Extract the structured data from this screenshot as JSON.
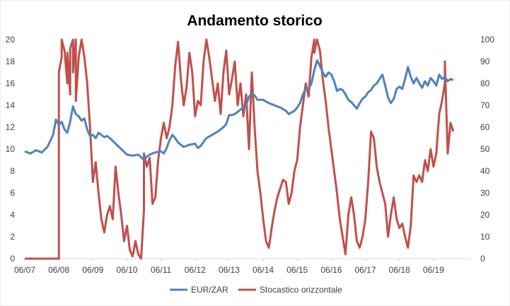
{
  "chart_data": {
    "type": "line",
    "title": "Andamento storico",
    "x_ticks": [
      "06/07",
      "06/08",
      "06/09",
      "06/10",
      "06/11",
      "06/12",
      "06/13",
      "06/14",
      "06/15",
      "06/16",
      "06/17",
      "06/18",
      "06/19"
    ],
    "xlim": [
      "06/07",
      "07/20"
    ],
    "y_left": {
      "ylim": [
        0,
        20
      ],
      "ticks": [
        "0",
        "2",
        "4",
        "6",
        "8",
        "10",
        "12",
        "14",
        "16",
        "18",
        "20"
      ]
    },
    "y_right": {
      "ylim": [
        0,
        100
      ],
      "ticks": [
        "0",
        "10",
        "20",
        "30",
        "40",
        "50",
        "60",
        "70",
        "80",
        "90",
        "100"
      ]
    },
    "grid": false,
    "legend_position": "bottom",
    "colors": {
      "eur_zar": "#4f81bd",
      "stocastico": "#c0504d"
    },
    "series": [
      {
        "name": "EUR/ZAR",
        "axis": "left",
        "points": [
          [
            "06/07",
            9.8
          ],
          [
            "08/07",
            9.6
          ],
          [
            "10/07",
            9.9
          ],
          [
            "12/07",
            9.7
          ],
          [
            "02/08",
            10.2
          ],
          [
            "04/08",
            11.3
          ],
          [
            "05/08",
            12.7
          ],
          [
            "06/08",
            12.2
          ],
          [
            "07/08",
            12.5
          ],
          [
            "08/08",
            11.8
          ],
          [
            "09/08",
            11.5
          ],
          [
            "10/08",
            12.5
          ],
          [
            "11/08",
            13.9
          ],
          [
            "12/08",
            13.2
          ],
          [
            "01/09",
            13.0
          ],
          [
            "02/09",
            12.6
          ],
          [
            "03/09",
            12.8
          ],
          [
            "04/09",
            11.8
          ],
          [
            "05/09",
            11.2
          ],
          [
            "06/09",
            11.3
          ],
          [
            "07/09",
            11.0
          ],
          [
            "08/09",
            11.5
          ],
          [
            "09/09",
            11.3
          ],
          [
            "10/09",
            11.1
          ],
          [
            "11/09",
            11.2
          ],
          [
            "12/09",
            11.0
          ],
          [
            "02/10",
            10.5
          ],
          [
            "04/10",
            10.0
          ],
          [
            "06/10",
            9.5
          ],
          [
            "08/10",
            9.4
          ],
          [
            "10/10",
            9.5
          ],
          [
            "12/10",
            9.0
          ],
          [
            "01/11",
            9.3
          ],
          [
            "02/11",
            9.5
          ],
          [
            "04/11",
            9.7
          ],
          [
            "06/11",
            9.8
          ],
          [
            "07/11",
            9.6
          ],
          [
            "08/11",
            10.1
          ],
          [
            "09/11",
            10.8
          ],
          [
            "10/11",
            11.3
          ],
          [
            "11/11",
            11.0
          ],
          [
            "12/11",
            10.6
          ],
          [
            "02/12",
            10.2
          ],
          [
            "04/12",
            10.4
          ],
          [
            "06/12",
            10.5
          ],
          [
            "07/12",
            10.1
          ],
          [
            "08/12",
            10.3
          ],
          [
            "10/12",
            11.0
          ],
          [
            "12/12",
            11.3
          ],
          [
            "02/13",
            11.6
          ],
          [
            "04/13",
            12.0
          ],
          [
            "05/13",
            12.3
          ],
          [
            "06/13",
            13.1
          ],
          [
            "07/13",
            13.1
          ],
          [
            "08/13",
            13.2
          ],
          [
            "09/13",
            13.4
          ],
          [
            "10/13",
            13.6
          ],
          [
            "12/13",
            14.0
          ],
          [
            "01/14",
            14.8
          ],
          [
            "02/14",
            15.0
          ],
          [
            "03/14",
            14.9
          ],
          [
            "04/14",
            14.5
          ],
          [
            "06/14",
            14.5
          ],
          [
            "08/14",
            14.2
          ],
          [
            "10/14",
            14.0
          ],
          [
            "12/14",
            13.8
          ],
          [
            "02/15",
            13.5
          ],
          [
            "03/15",
            13.2
          ],
          [
            "05/15",
            13.5
          ],
          [
            "06/15",
            13.8
          ],
          [
            "07/15",
            14.2
          ],
          [
            "08/15",
            15.0
          ],
          [
            "09/15",
            15.5
          ],
          [
            "10/15",
            15.5
          ],
          [
            "11/15",
            16.0
          ],
          [
            "12/15",
            17.2
          ],
          [
            "01/16",
            18.1
          ],
          [
            "02/16",
            17.6
          ],
          [
            "03/16",
            17.0
          ],
          [
            "04/16",
            16.6
          ],
          [
            "05/16",
            17.0
          ],
          [
            "06/16",
            16.8
          ],
          [
            "07/16",
            16.2
          ],
          [
            "08/16",
            15.3
          ],
          [
            "09/16",
            15.5
          ],
          [
            "10/16",
            15.4
          ],
          [
            "11/16",
            15.0
          ],
          [
            "12/16",
            14.5
          ],
          [
            "01/17",
            14.3
          ],
          [
            "02/17",
            14.0
          ],
          [
            "03/17",
            13.7
          ],
          [
            "04/17",
            14.2
          ],
          [
            "05/17",
            14.6
          ],
          [
            "06/17",
            14.8
          ],
          [
            "07/17",
            15.2
          ],
          [
            "08/17",
            15.4
          ],
          [
            "09/17",
            15.8
          ],
          [
            "10/17",
            16.0
          ],
          [
            "11/17",
            16.4
          ],
          [
            "12/17",
            16.8
          ],
          [
            "01/18",
            15.8
          ],
          [
            "02/18",
            14.7
          ],
          [
            "03/18",
            14.2
          ],
          [
            "04/18",
            14.6
          ],
          [
            "05/18",
            15.5
          ],
          [
            "06/18",
            15.7
          ],
          [
            "07/18",
            15.5
          ],
          [
            "08/18",
            16.4
          ],
          [
            "09/18",
            17.5
          ],
          [
            "10/18",
            16.6
          ],
          [
            "11/18",
            16.0
          ],
          [
            "12/18",
            16.5
          ],
          [
            "01/19",
            16.0
          ],
          [
            "02/19",
            15.6
          ],
          [
            "03/19",
            16.2
          ],
          [
            "04/19",
            15.8
          ],
          [
            "05/19",
            16.5
          ],
          [
            "06/19",
            16.2
          ],
          [
            "07/19",
            15.8
          ],
          [
            "08/19",
            16.8
          ],
          [
            "09/19",
            16.4
          ],
          [
            "10/19",
            16.6
          ],
          [
            "11/19",
            16.2
          ],
          [
            "12/19",
            16.4
          ],
          [
            "01/20",
            16.3
          ]
        ]
      },
      {
        "name": "Stocastico orizzontale",
        "axis": "right",
        "points": [
          [
            "06/07",
            0
          ],
          [
            "05/08",
            0
          ],
          [
            "06/08",
            0
          ],
          [
            "06/08",
            85
          ],
          [
            "07/08",
            92
          ],
          [
            "07/08",
            100
          ],
          [
            "08/08",
            95
          ],
          [
            "09/08",
            80
          ],
          [
            "09/08",
            94
          ],
          [
            "10/08",
            75
          ],
          [
            "10/08",
            96
          ],
          [
            "11/08",
            100
          ],
          [
            "11/08",
            85
          ],
          [
            "12/08",
            100
          ],
          [
            "12/08",
            72
          ],
          [
            "01/09",
            92
          ],
          [
            "02/09",
            100
          ],
          [
            "03/09",
            92
          ],
          [
            "04/09",
            80
          ],
          [
            "05/09",
            60
          ],
          [
            "06/09",
            35
          ],
          [
            "07/09",
            44
          ],
          [
            "08/09",
            30
          ],
          [
            "09/09",
            18
          ],
          [
            "10/09",
            12
          ],
          [
            "11/09",
            20
          ],
          [
            "12/09",
            24
          ],
          [
            "01/10",
            18
          ],
          [
            "02/10",
            42
          ],
          [
            "03/10",
            30
          ],
          [
            "04/10",
            20
          ],
          [
            "05/10",
            8
          ],
          [
            "06/10",
            15
          ],
          [
            "07/10",
            4
          ],
          [
            "08/10",
            1
          ],
          [
            "09/10",
            8
          ],
          [
            "10/10",
            2
          ],
          [
            "11/10",
            0
          ],
          [
            "12/10",
            22
          ],
          [
            "12/10",
            48
          ],
          [
            "01/11",
            42
          ],
          [
            "02/11",
            46
          ],
          [
            "03/11",
            25
          ],
          [
            "04/11",
            28
          ],
          [
            "05/11",
            45
          ],
          [
            "06/11",
            55
          ],
          [
            "07/11",
            62
          ],
          [
            "08/11",
            55
          ],
          [
            "09/11",
            60
          ],
          [
            "10/11",
            70
          ],
          [
            "11/11",
            88
          ],
          [
            "12/11",
            99
          ],
          [
            "01/12",
            82
          ],
          [
            "02/12",
            70
          ],
          [
            "03/12",
            78
          ],
          [
            "04/12",
            94
          ],
          [
            "05/12",
            85
          ],
          [
            "06/12",
            65
          ],
          [
            "07/12",
            72
          ],
          [
            "08/12",
            70
          ],
          [
            "09/12",
            90
          ],
          [
            "10/12",
            100
          ],
          [
            "11/12",
            92
          ],
          [
            "12/12",
            82
          ],
          [
            "01/13",
            72
          ],
          [
            "02/13",
            80
          ],
          [
            "03/13",
            66
          ],
          [
            "04/13",
            85
          ],
          [
            "05/13",
            95
          ],
          [
            "06/13",
            75
          ],
          [
            "07/13",
            82
          ],
          [
            "08/13",
            90
          ],
          [
            "09/13",
            70
          ],
          [
            "10/13",
            80
          ],
          [
            "11/13",
            65
          ],
          [
            "12/13",
            75
          ],
          [
            "01/14",
            50
          ],
          [
            "02/14",
            85
          ],
          [
            "03/14",
            60
          ],
          [
            "04/14",
            40
          ],
          [
            "05/14",
            30
          ],
          [
            "06/14",
            18
          ],
          [
            "07/14",
            8
          ],
          [
            "08/14",
            5
          ],
          [
            "09/14",
            14
          ],
          [
            "10/14",
            22
          ],
          [
            "11/14",
            28
          ],
          [
            "12/14",
            32
          ],
          [
            "01/15",
            36
          ],
          [
            "02/15",
            35
          ],
          [
            "03/15",
            25
          ],
          [
            "04/15",
            30
          ],
          [
            "05/15",
            40
          ],
          [
            "06/15",
            45
          ],
          [
            "07/15",
            60
          ],
          [
            "08/15",
            70
          ],
          [
            "09/15",
            80
          ],
          [
            "10/15",
            74
          ],
          [
            "11/15",
            92
          ],
          [
            "12/15",
            100
          ],
          [
            "12/15",
            94
          ],
          [
            "01/16",
            100
          ],
          [
            "02/16",
            95
          ],
          [
            "03/16",
            82
          ],
          [
            "04/16",
            72
          ],
          [
            "05/16",
            60
          ],
          [
            "06/16",
            50
          ],
          [
            "07/16",
            40
          ],
          [
            "08/16",
            30
          ],
          [
            "09/16",
            18
          ],
          [
            "10/16",
            10
          ],
          [
            "11/16",
            2
          ],
          [
            "12/16",
            20
          ],
          [
            "01/17",
            28
          ],
          [
            "02/17",
            20
          ],
          [
            "03/17",
            8
          ],
          [
            "04/17",
            5
          ],
          [
            "05/17",
            10
          ],
          [
            "06/17",
            18
          ],
          [
            "07/17",
            35
          ],
          [
            "08/17",
            58
          ],
          [
            "09/17",
            55
          ],
          [
            "10/17",
            42
          ],
          [
            "11/17",
            35
          ],
          [
            "12/17",
            30
          ],
          [
            "01/18",
            25
          ],
          [
            "02/18",
            10
          ],
          [
            "03/18",
            20
          ],
          [
            "04/18",
            28
          ],
          [
            "05/18",
            18
          ],
          [
            "06/18",
            14
          ],
          [
            "07/18",
            16
          ],
          [
            "08/18",
            10
          ],
          [
            "09/18",
            5
          ],
          [
            "10/18",
            15
          ],
          [
            "11/18",
            38
          ],
          [
            "12/18",
            35
          ],
          [
            "01/19",
            38
          ],
          [
            "02/19",
            35
          ],
          [
            "03/19",
            45
          ],
          [
            "04/19",
            40
          ],
          [
            "05/19",
            50
          ],
          [
            "06/19",
            42
          ],
          [
            "07/19",
            48
          ],
          [
            "08/19",
            66
          ],
          [
            "09/19",
            72
          ],
          [
            "10/19",
            80
          ],
          [
            "10/19",
            90
          ],
          [
            "11/19",
            48
          ],
          [
            "12/19",
            62
          ],
          [
            "01/20",
            58
          ]
        ]
      }
    ]
  }
}
